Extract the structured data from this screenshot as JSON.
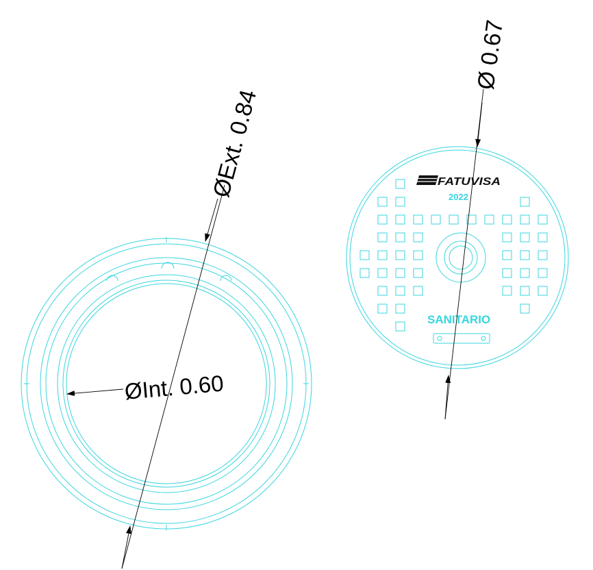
{
  "colors": {
    "line": "#39d5df",
    "dimension": "#000000",
    "logo": "#111111",
    "background": "#ffffff"
  },
  "frame": {
    "dimensions": {
      "external": "ØExt. 0.84",
      "internal": "ØInt. 0.60"
    }
  },
  "cover": {
    "dimension": "Ø 0.67",
    "brand": "FATUVISA",
    "year": "2022",
    "label": "SANITARIO"
  }
}
